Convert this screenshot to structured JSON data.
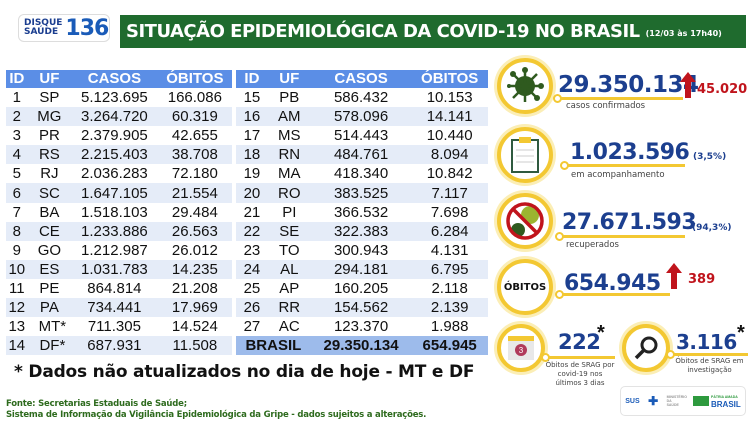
{
  "header": {
    "logo_top": "DISQUE",
    "logo_bottom": "SAÚDE",
    "logo_number": "136",
    "title": "SITUAÇÃO EPIDEMIOLÓGICA DA COVID-19 NO BRASIL",
    "datetime": "(12/03 às 17h40)"
  },
  "table": {
    "columns": [
      "ID",
      "UF",
      "CASOS",
      "ÓBITOS"
    ],
    "left": [
      [
        "1",
        "SP",
        "5.123.695",
        "166.086"
      ],
      [
        "2",
        "MG",
        "3.264.720",
        "60.319"
      ],
      [
        "3",
        "PR",
        "2.379.905",
        "42.655"
      ],
      [
        "4",
        "RS",
        "2.215.403",
        "38.708"
      ],
      [
        "5",
        "RJ",
        "2.036.283",
        "72.180"
      ],
      [
        "6",
        "SC",
        "1.647.105",
        "21.554"
      ],
      [
        "7",
        "BA",
        "1.518.103",
        "29.484"
      ],
      [
        "8",
        "CE",
        "1.233.886",
        "26.563"
      ],
      [
        "9",
        "GO",
        "1.212.987",
        "26.012"
      ],
      [
        "10",
        "ES",
        "1.031.783",
        "14.235"
      ],
      [
        "11",
        "PE",
        "864.814",
        "21.208"
      ],
      [
        "12",
        "PA",
        "734.441",
        "17.969"
      ],
      [
        "13",
        "MT*",
        "711.305",
        "14.524"
      ],
      [
        "14",
        "DF*",
        "687.931",
        "11.508"
      ]
    ],
    "right": [
      [
        "15",
        "PB",
        "586.432",
        "10.153"
      ],
      [
        "16",
        "AM",
        "578.096",
        "14.141"
      ],
      [
        "17",
        "MS",
        "514.443",
        "10.440"
      ],
      [
        "18",
        "RN",
        "484.761",
        "8.094"
      ],
      [
        "19",
        "MA",
        "418.340",
        "10.842"
      ],
      [
        "20",
        "RO",
        "383.525",
        "7.117"
      ],
      [
        "21",
        "PI",
        "366.532",
        "7.698"
      ],
      [
        "22",
        "SE",
        "322.383",
        "6.284"
      ],
      [
        "23",
        "TO",
        "300.943",
        "4.131"
      ],
      [
        "24",
        "AL",
        "294.181",
        "6.795"
      ],
      [
        "25",
        "AP",
        "160.205",
        "2.118"
      ],
      [
        "26",
        "RR",
        "154.562",
        "2.139"
      ],
      [
        "27",
        "AC",
        "123.370",
        "1.988"
      ]
    ],
    "total": {
      "label": "BRASIL",
      "casos": "29.350.134",
      "obitos": "654.945"
    }
  },
  "footnote": "* Dados não atualizados no dia de hoje - MT e DF",
  "source": [
    "Fonte: Secretarias Estaduais de Saúde;",
    "Sistema de Informação da Vigilância Epidemiológica da Gripe - dados sujeitos a alterações."
  ],
  "stats": {
    "confirmados": {
      "value": "29.350.134",
      "label": "casos confirmados",
      "delta": "45.020"
    },
    "acompanhamento": {
      "value": "1.023.596",
      "label": "em acompanhamento",
      "pct": "(3,5%)"
    },
    "recuperados": {
      "value": "27.671.593",
      "label": "recuperados",
      "pct": "(94,3%)"
    },
    "obitos": {
      "badge": "ÓBITOS",
      "value": "654.945",
      "delta": "389"
    },
    "srag": {
      "value": "222",
      "asterisk": "*",
      "calendar_day": "3",
      "label": "Óbitos de SRAG por covid-19 nos últimos 3 dias"
    },
    "investigacao": {
      "value": "3.116",
      "asterisk": "*",
      "label": "Óbitos de SRAG em investigação"
    }
  },
  "partners": {
    "sus": "SUS",
    "ministerio": "MINISTÉRIO DA SAÚDE",
    "brasil": "BRASIL",
    "patria": "PÁTRIA AMADA"
  },
  "colors": {
    "green": "#1f6b2e",
    "blue_header": "#5b8ee6",
    "navy": "#1c3f8f",
    "yellow": "#f3c832",
    "red": "#c0141c"
  }
}
